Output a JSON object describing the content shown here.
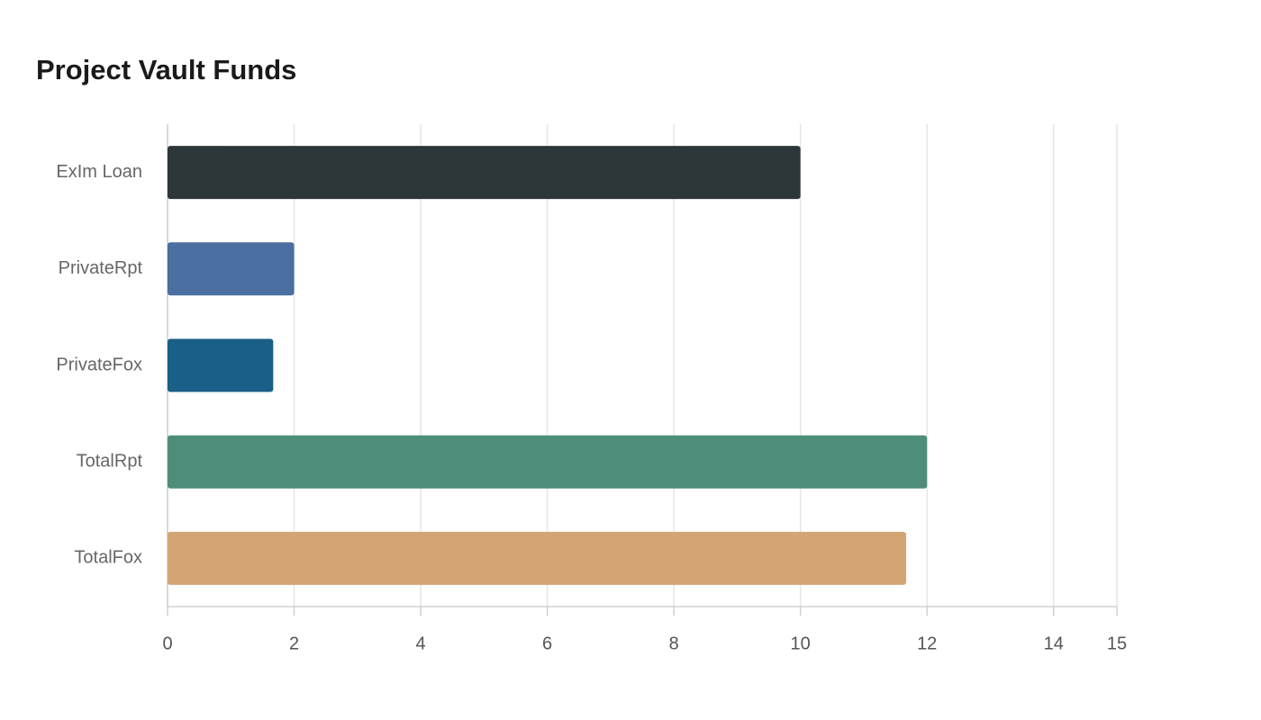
{
  "chart_data": {
    "type": "bar",
    "orientation": "horizontal",
    "title": "Project Vault Funds",
    "categories": [
      "ExIm Loan",
      "PrivateRpt",
      "PrivateFox",
      "TotalRpt",
      "TotalFox"
    ],
    "values": [
      10,
      2,
      1.67,
      12,
      11.67
    ],
    "colors": [
      "#2d3639",
      "#4a6fa0",
      "#1a5f87",
      "#4f8d7b",
      "#d3a575"
    ],
    "xlim": [
      0,
      15
    ],
    "xticks": [
      0,
      2,
      4,
      6,
      8,
      10,
      12,
      14,
      15
    ],
    "grid": true
  }
}
